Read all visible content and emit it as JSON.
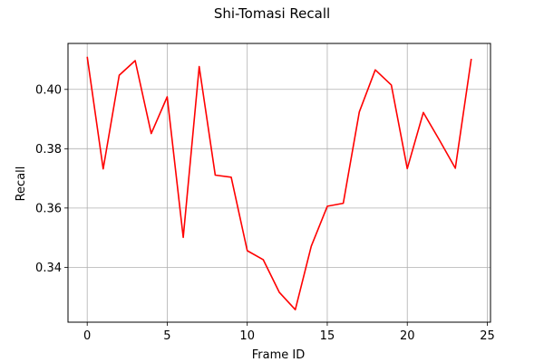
{
  "chart_data": {
    "type": "line",
    "title": "Shi-Tomasi Recall",
    "xlabel": "Frame ID",
    "ylabel": "Recall",
    "xlim": [
      -1.2,
      25.2
    ],
    "ylim": [
      0.3215,
      0.4155
    ],
    "xticks": [
      0,
      5,
      10,
      15,
      20,
      25
    ],
    "yticks": [
      0.34,
      0.36,
      0.38,
      0.4
    ],
    "xtick_labels": [
      "0",
      "5",
      "10",
      "15",
      "20",
      "25"
    ],
    "ytick_labels": [
      "0.34",
      "0.36",
      "0.38",
      "0.40"
    ],
    "grid": true,
    "legend": false,
    "series": [
      {
        "color": "#ff0000",
        "x": [
          0,
          1,
          2,
          3,
          4,
          5,
          6,
          7,
          8,
          9,
          10,
          11,
          12,
          13,
          14,
          15,
          16,
          17,
          18,
          19,
          20,
          21,
          22,
          23,
          24
        ],
        "y": [
          0.411,
          0.3732,
          0.4048,
          0.4097,
          0.3851,
          0.3975,
          0.3501,
          0.4077,
          0.3711,
          0.3704,
          0.3456,
          0.3426,
          0.3316,
          0.3257,
          0.3471,
          0.3606,
          0.3616,
          0.3924,
          0.4066,
          0.4015,
          0.3733,
          0.3922,
          0.383,
          0.3734,
          0.4103
        ]
      }
    ]
  }
}
